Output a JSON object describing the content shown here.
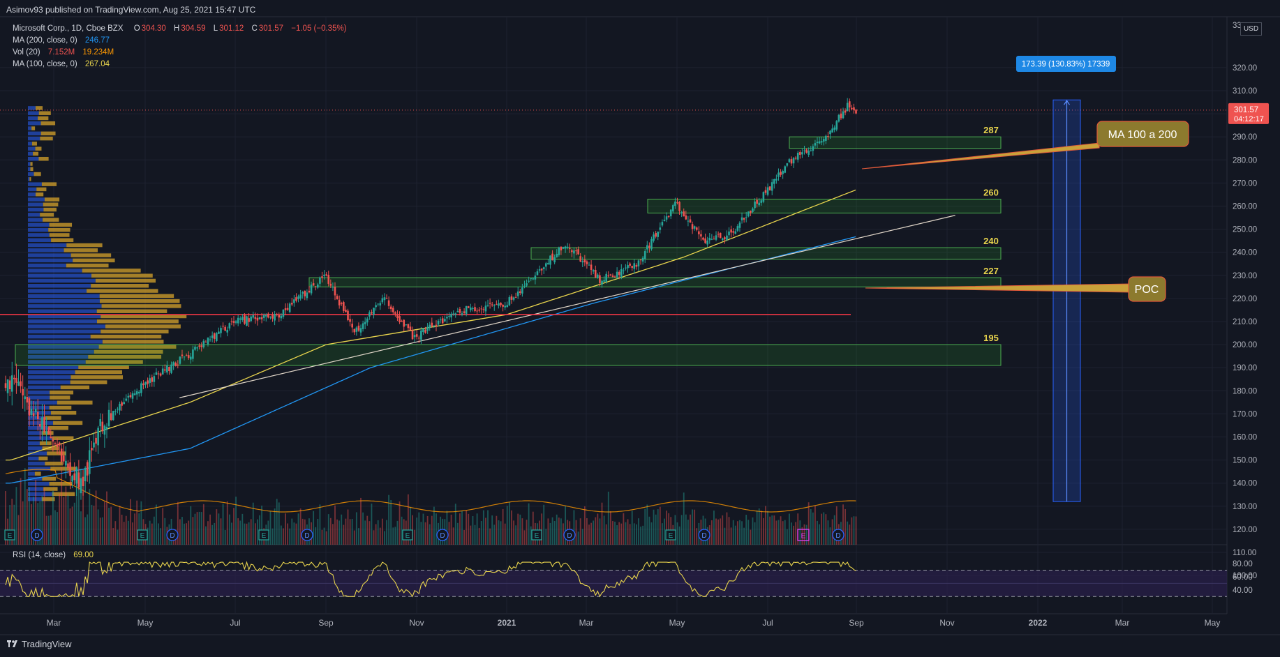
{
  "header": {
    "published": "Asimov93 published on TradingView.com, Aug 25, 2021 15:47 UTC"
  },
  "legend": {
    "symbol": "Microsoft Corp., 1D, Cboe BZX",
    "open_label": "O",
    "open": "304.30",
    "high_label": "H",
    "high": "304.59",
    "low_label": "L",
    "low": "301.12",
    "close_label": "C",
    "close": "301.57",
    "change": "−1.05 (−0.35%)",
    "ma200_label": "MA (200, close, 0)",
    "ma200_value": "246.77",
    "vol_label": "Vol (20)",
    "vol_value": "7.152M",
    "vol_ma": "19.234M",
    "ma100_label": "MA (100, close, 0)",
    "ma100_value": "267.04",
    "rsi_label": "RSI (14, close)",
    "rsi_value": "69.00"
  },
  "currency": "USD",
  "price_tag": {
    "price": "301.57",
    "countdown": "04:12:17"
  },
  "measure_label": "173.39 (130.83%) 17339",
  "callouts": {
    "ma": "MA 100 a 200",
    "poc": "POC"
  },
  "zone_labels": [
    "287",
    "260",
    "240",
    "227",
    "195"
  ],
  "footer": {
    "brand": "TradingView"
  },
  "colors": {
    "background": "#131722",
    "up": "#26a69a",
    "down": "#ef5350",
    "ma100": "#e8d44d",
    "ma200": "#2196f3",
    "zone": "#2e9e2e",
    "poc_line": "#f23645",
    "rsi": "#e8d44d",
    "rsi_band": "#2a1f4a",
    "profile_blue": "#2962ff",
    "profile_gold": "#d6a32b",
    "callout": "#8c7a2e"
  },
  "chart_data": {
    "type": "candlestick",
    "title": "Microsoft Corp., 1D, Cboe BZX",
    "price_axis": {
      "ticks": [
        100,
        110,
        120,
        130,
        140,
        150,
        160,
        170,
        180,
        190,
        200,
        210,
        220,
        230,
        240,
        250,
        260,
        270,
        280,
        290,
        300,
        310,
        320
      ],
      "top_clipped_label": "33",
      "range": [
        99,
        333
      ]
    },
    "time_axis": {
      "labels": [
        "Mar",
        "May",
        "Jul",
        "Sep",
        "Nov",
        "2021",
        "Mar",
        "May",
        "Jul",
        "Sep",
        "Nov",
        "2022",
        "Mar",
        "May"
      ]
    },
    "approx_close_path": [
      {
        "date": "2020-02",
        "close": 185
      },
      {
        "date": "2020-03-20",
        "close": 140
      },
      {
        "date": "2020-04",
        "close": 165
      },
      {
        "date": "2020-05",
        "close": 183
      },
      {
        "date": "2020-06",
        "close": 196
      },
      {
        "date": "2020-07",
        "close": 210
      },
      {
        "date": "2020-08",
        "close": 213
      },
      {
        "date": "2020-09-01",
        "close": 230
      },
      {
        "date": "2020-09-20",
        "close": 205
      },
      {
        "date": "2020-10-10",
        "close": 220
      },
      {
        "date": "2020-10-30",
        "close": 203
      },
      {
        "date": "2020-12",
        "close": 215
      },
      {
        "date": "2021-01",
        "close": 218
      },
      {
        "date": "2021-02-10",
        "close": 244
      },
      {
        "date": "2021-03-05",
        "close": 228
      },
      {
        "date": "2021-03-30",
        "close": 235
      },
      {
        "date": "2021-04-25",
        "close": 261
      },
      {
        "date": "2021-05-15",
        "close": 244
      },
      {
        "date": "2021-06-01",
        "close": 248
      },
      {
        "date": "2021-06-25",
        "close": 266
      },
      {
        "date": "2021-07-15",
        "close": 282
      },
      {
        "date": "2021-08-01",
        "close": 287
      },
      {
        "date": "2021-08-20",
        "close": 304
      },
      {
        "date": "2021-08-25",
        "close": 301.57
      }
    ],
    "ma100_path": [
      {
        "date": "2020-02",
        "value": 150
      },
      {
        "date": "2020-06",
        "value": 175
      },
      {
        "date": "2020-09",
        "value": 200
      },
      {
        "date": "2021-01",
        "value": 213
      },
      {
        "date": "2021-05",
        "value": 238
      },
      {
        "date": "2021-08-25",
        "value": 267.04
      }
    ],
    "ma200_path": [
      {
        "date": "2020-02",
        "value": 140
      },
      {
        "date": "2020-06",
        "value": 155
      },
      {
        "date": "2020-10",
        "value": 190
      },
      {
        "date": "2021-03",
        "value": 218
      },
      {
        "date": "2021-08-25",
        "value": 246.77
      }
    ],
    "zones": [
      {
        "label": "287",
        "low": 285,
        "high": 290
      },
      {
        "label": "260",
        "low": 257,
        "high": 263
      },
      {
        "label": "240",
        "low": 237,
        "high": 242
      },
      {
        "label": "227",
        "low": 225,
        "high": 229
      },
      {
        "label": "195",
        "low": 191,
        "high": 200
      }
    ],
    "poc_level": 213,
    "trendline": [
      {
        "date": "2020-05-25",
        "value": 177
      },
      {
        "date": "2021-10-31",
        "value": 256
      }
    ],
    "measure": {
      "from": 132,
      "to": 306,
      "label": "173.39 (130.83%) 17339"
    },
    "volume_axis": {
      "note": "volume panel shares lower price-scale area"
    },
    "rsi": {
      "ticks": [
        40,
        60,
        80
      ],
      "upper_band": 70,
      "lower_band": 30,
      "last": 69.0
    },
    "event_markers": [
      "E",
      "D",
      "E",
      "D",
      "E",
      "D",
      "E",
      "D",
      "E",
      "D",
      "E",
      "D",
      "E"
    ]
  }
}
